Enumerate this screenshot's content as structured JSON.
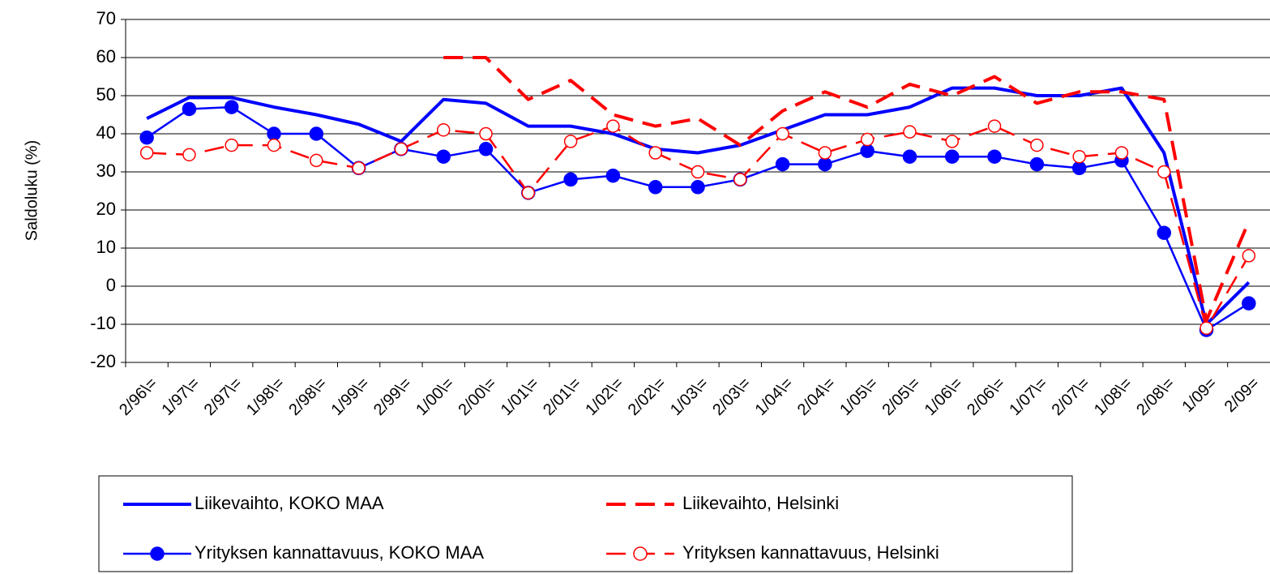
{
  "chart_data": {
    "type": "line",
    "y_label": "Saldoluku (%)",
    "categories": [
      "2/96\\=",
      "1/97\\=",
      "2/97\\=",
      "1/98\\=",
      "2/98\\=",
      "1/99\\=",
      "2/99\\=",
      "1/00\\=",
      "2/00\\=",
      "1/01\\=",
      "2/01\\=",
      "1/02\\=",
      "2/02\\=",
      "1/03\\=",
      "2/03\\=",
      "1/04\\=",
      "2/04\\=",
      "1/05\\=",
      "2/05\\=",
      "1/06\\=",
      "2/06\\=",
      "1/07\\=",
      "2/07\\=",
      "1/08\\=",
      "2/08\\=",
      "1/09=",
      "2/09="
    ],
    "series": [
      {
        "name": "Liikevaihto, KOKO MAA",
        "color": "#0000ff",
        "dashed": false,
        "marker": "none",
        "width": 4,
        "values": [
          44,
          49.5,
          49.5,
          47,
          45,
          42.5,
          38,
          49,
          48,
          42,
          42,
          40,
          36,
          35,
          37,
          41,
          45,
          45,
          47,
          52,
          52,
          50,
          50,
          52,
          35,
          -10,
          1
        ]
      },
      {
        "name": "Liikevaihto, Helsinki",
        "color": "#ff0000",
        "dashed": true,
        "marker": "none",
        "width": 4,
        "values": [
          null,
          null,
          null,
          null,
          null,
          null,
          null,
          60,
          60,
          49,
          54,
          45,
          42,
          44,
          37,
          46,
          51,
          47,
          53,
          50,
          55,
          48,
          51,
          51,
          49,
          -9,
          17
        ]
      },
      {
        "name": "Yrityksen kannattavuus, KOKO MAA",
        "color": "#0000ff",
        "dashed": false,
        "marker": "filled",
        "width": 2.5,
        "values": [
          39,
          46.5,
          47,
          40,
          40,
          31,
          36,
          34,
          36,
          24.5,
          28,
          29,
          26,
          26,
          28,
          32,
          32,
          35.5,
          34,
          34,
          34,
          32,
          31,
          33,
          14,
          -11.5,
          -4.5
        ]
      },
      {
        "name": "Yrityksen kannattavuus, Helsinki",
        "color": "#ff0000",
        "dashed": true,
        "marker": "open",
        "width": 2.5,
        "values": [
          35,
          34.5,
          37,
          37,
          33,
          31,
          36,
          41,
          40,
          24.5,
          38,
          42,
          35,
          30,
          28,
          40,
          35,
          38.5,
          40.5,
          38,
          42,
          37,
          34,
          35,
          30,
          -11,
          8
        ]
      }
    ],
    "ylim": [
      -20,
      70
    ],
    "yticks": [
      -20,
      -10,
      0,
      10,
      20,
      30,
      40,
      50,
      60,
      70
    ],
    "grid": true
  }
}
